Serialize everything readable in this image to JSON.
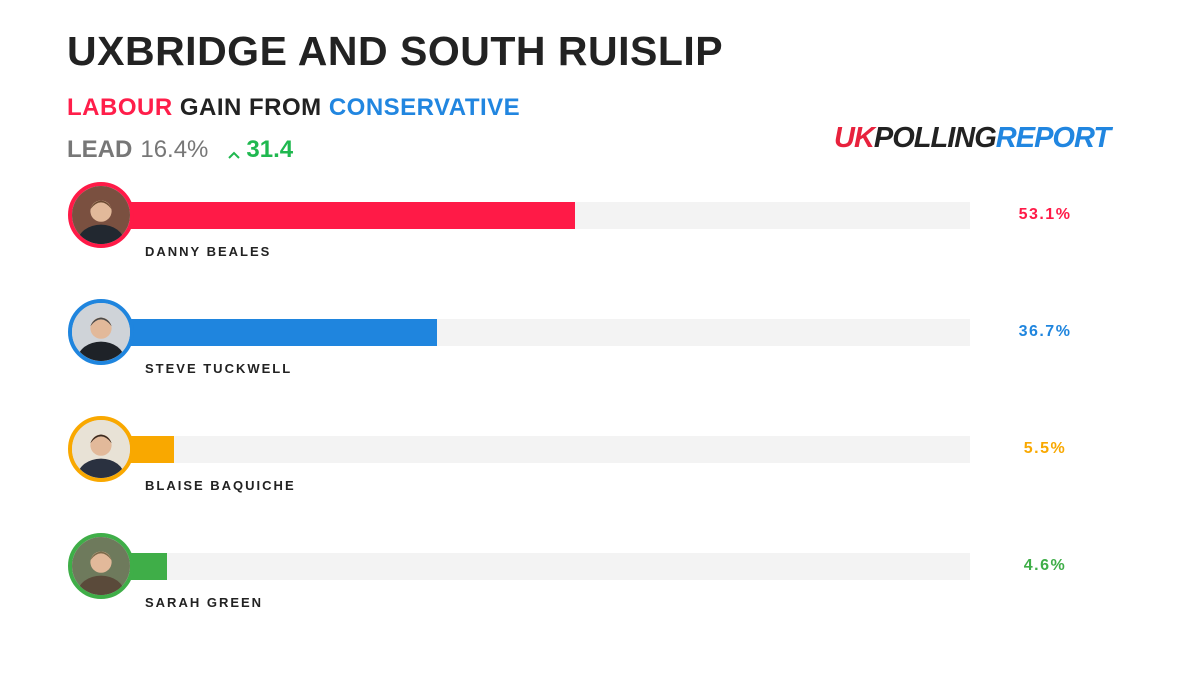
{
  "header": {
    "title": "UXBRIDGE AND SOUTH RUISLIP",
    "subtitle": {
      "winner": "LABOUR",
      "middle": " GAIN FROM ",
      "loser": "CONSERVATIVE",
      "winner_color": "#ff1e4a",
      "loser_color": "#2186e0"
    },
    "lead_label": "LEAD",
    "lead_value": "16.4%",
    "swing_value": "31.4",
    "swing_icon": "chevron-up-icon",
    "swing_color": "#1fb84f"
  },
  "logo": {
    "part1": "UK",
    "part2": "POLLING",
    "part3": "REPORT",
    "color1": "#e8223d",
    "color2": "#222222",
    "color3": "#2186e0"
  },
  "chart_data": {
    "type": "bar",
    "orientation": "horizontal",
    "categories": [
      "DANNY BEALES",
      "STEVE TUCKWELL",
      "BLAISE BAQUICHE",
      "SARAH GREEN"
    ],
    "values": [
      53.1,
      36.7,
      5.5,
      4.6
    ],
    "labels": [
      "53.1%",
      "36.7%",
      "5.5%",
      "4.6%"
    ],
    "colors": [
      "#ff1a47",
      "#1f85de",
      "#f9a800",
      "#3fae48"
    ],
    "xlim": [
      0,
      100
    ],
    "grid": false,
    "legend": "none"
  }
}
